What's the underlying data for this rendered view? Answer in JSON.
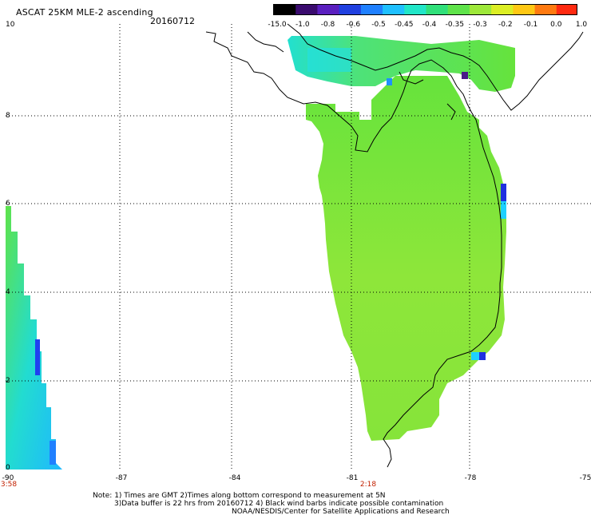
{
  "header": {
    "title": "ASCAT 25KM MLE-2 ascending",
    "date": "20160712"
  },
  "colorbar": {
    "labels": [
      "-15.0",
      "-1.0",
      "-0.8",
      "-0.6",
      "-0.5",
      "-0.45",
      "-0.4",
      "-0.35",
      "-0.3",
      "-0.2",
      "-0.1",
      "0.0",
      "1.0"
    ],
    "colors": [
      "#000000",
      "#3a0b6e",
      "#5a1fbf",
      "#2040e0",
      "#1f80ff",
      "#1fc0ff",
      "#21e6c8",
      "#30e07a",
      "#5fe34a",
      "#9ee83a",
      "#dcee24",
      "#ffc814",
      "#ff7a10",
      "#ff2a10"
    ]
  },
  "axes": {
    "y_ticks": [
      "10",
      "8",
      "6",
      "4",
      "2",
      "0"
    ],
    "x_ticks": [
      "-90",
      "-87",
      "-84",
      "-81",
      "-78",
      "-75"
    ],
    "times": [
      {
        "label": "3:58",
        "lon": -90
      },
      {
        "label": "2:18",
        "lon": -81
      }
    ]
  },
  "note": {
    "line1": "Note: 1) Times are GMT 2)Times along bottom correspond to measurement at 5N",
    "line2": "3)Data buffer is 22 hrs from 20160712 4) Black wind barbs indicate possible contamination",
    "line3": "NOAA/NESDIS/Center for Satellite Applications and Research"
  }
}
